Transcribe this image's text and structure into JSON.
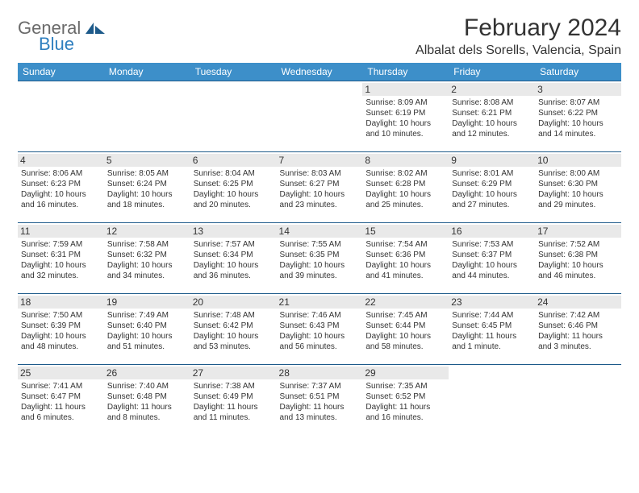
{
  "logo": {
    "part1": "General",
    "part2": "Blue"
  },
  "title": "February 2024",
  "location": "Albalat dels Sorells, Valencia, Spain",
  "colors": {
    "header_bg": "#3d8fc9",
    "header_border": "#1d5a8a",
    "daynum_bg": "#e9e9e9",
    "text": "#333333",
    "logo_gray": "#6a6a6a",
    "logo_blue": "#2f7fbf"
  },
  "weekdays": [
    "Sunday",
    "Monday",
    "Tuesday",
    "Wednesday",
    "Thursday",
    "Friday",
    "Saturday"
  ],
  "weeks": [
    [
      null,
      null,
      null,
      null,
      {
        "n": "1",
        "sr": "8:09 AM",
        "ss": "6:19 PM",
        "dl": "10 hours and 10 minutes."
      },
      {
        "n": "2",
        "sr": "8:08 AM",
        "ss": "6:21 PM",
        "dl": "10 hours and 12 minutes."
      },
      {
        "n": "3",
        "sr": "8:07 AM",
        "ss": "6:22 PM",
        "dl": "10 hours and 14 minutes."
      }
    ],
    [
      {
        "n": "4",
        "sr": "8:06 AM",
        "ss": "6:23 PM",
        "dl": "10 hours and 16 minutes."
      },
      {
        "n": "5",
        "sr": "8:05 AM",
        "ss": "6:24 PM",
        "dl": "10 hours and 18 minutes."
      },
      {
        "n": "6",
        "sr": "8:04 AM",
        "ss": "6:25 PM",
        "dl": "10 hours and 20 minutes."
      },
      {
        "n": "7",
        "sr": "8:03 AM",
        "ss": "6:27 PM",
        "dl": "10 hours and 23 minutes."
      },
      {
        "n": "8",
        "sr": "8:02 AM",
        "ss": "6:28 PM",
        "dl": "10 hours and 25 minutes."
      },
      {
        "n": "9",
        "sr": "8:01 AM",
        "ss": "6:29 PM",
        "dl": "10 hours and 27 minutes."
      },
      {
        "n": "10",
        "sr": "8:00 AM",
        "ss": "6:30 PM",
        "dl": "10 hours and 29 minutes."
      }
    ],
    [
      {
        "n": "11",
        "sr": "7:59 AM",
        "ss": "6:31 PM",
        "dl": "10 hours and 32 minutes."
      },
      {
        "n": "12",
        "sr": "7:58 AM",
        "ss": "6:32 PM",
        "dl": "10 hours and 34 minutes."
      },
      {
        "n": "13",
        "sr": "7:57 AM",
        "ss": "6:34 PM",
        "dl": "10 hours and 36 minutes."
      },
      {
        "n": "14",
        "sr": "7:55 AM",
        "ss": "6:35 PM",
        "dl": "10 hours and 39 minutes."
      },
      {
        "n": "15",
        "sr": "7:54 AM",
        "ss": "6:36 PM",
        "dl": "10 hours and 41 minutes."
      },
      {
        "n": "16",
        "sr": "7:53 AM",
        "ss": "6:37 PM",
        "dl": "10 hours and 44 minutes."
      },
      {
        "n": "17",
        "sr": "7:52 AM",
        "ss": "6:38 PM",
        "dl": "10 hours and 46 minutes."
      }
    ],
    [
      {
        "n": "18",
        "sr": "7:50 AM",
        "ss": "6:39 PM",
        "dl": "10 hours and 48 minutes."
      },
      {
        "n": "19",
        "sr": "7:49 AM",
        "ss": "6:40 PM",
        "dl": "10 hours and 51 minutes."
      },
      {
        "n": "20",
        "sr": "7:48 AM",
        "ss": "6:42 PM",
        "dl": "10 hours and 53 minutes."
      },
      {
        "n": "21",
        "sr": "7:46 AM",
        "ss": "6:43 PM",
        "dl": "10 hours and 56 minutes."
      },
      {
        "n": "22",
        "sr": "7:45 AM",
        "ss": "6:44 PM",
        "dl": "10 hours and 58 minutes."
      },
      {
        "n": "23",
        "sr": "7:44 AM",
        "ss": "6:45 PM",
        "dl": "11 hours and 1 minute."
      },
      {
        "n": "24",
        "sr": "7:42 AM",
        "ss": "6:46 PM",
        "dl": "11 hours and 3 minutes."
      }
    ],
    [
      {
        "n": "25",
        "sr": "7:41 AM",
        "ss": "6:47 PM",
        "dl": "11 hours and 6 minutes."
      },
      {
        "n": "26",
        "sr": "7:40 AM",
        "ss": "6:48 PM",
        "dl": "11 hours and 8 minutes."
      },
      {
        "n": "27",
        "sr": "7:38 AM",
        "ss": "6:49 PM",
        "dl": "11 hours and 11 minutes."
      },
      {
        "n": "28",
        "sr": "7:37 AM",
        "ss": "6:51 PM",
        "dl": "11 hours and 13 minutes."
      },
      {
        "n": "29",
        "sr": "7:35 AM",
        "ss": "6:52 PM",
        "dl": "11 hours and 16 minutes."
      },
      null,
      null
    ]
  ],
  "labels": {
    "sunrise": "Sunrise:",
    "sunset": "Sunset:",
    "daylight": "Daylight:"
  }
}
